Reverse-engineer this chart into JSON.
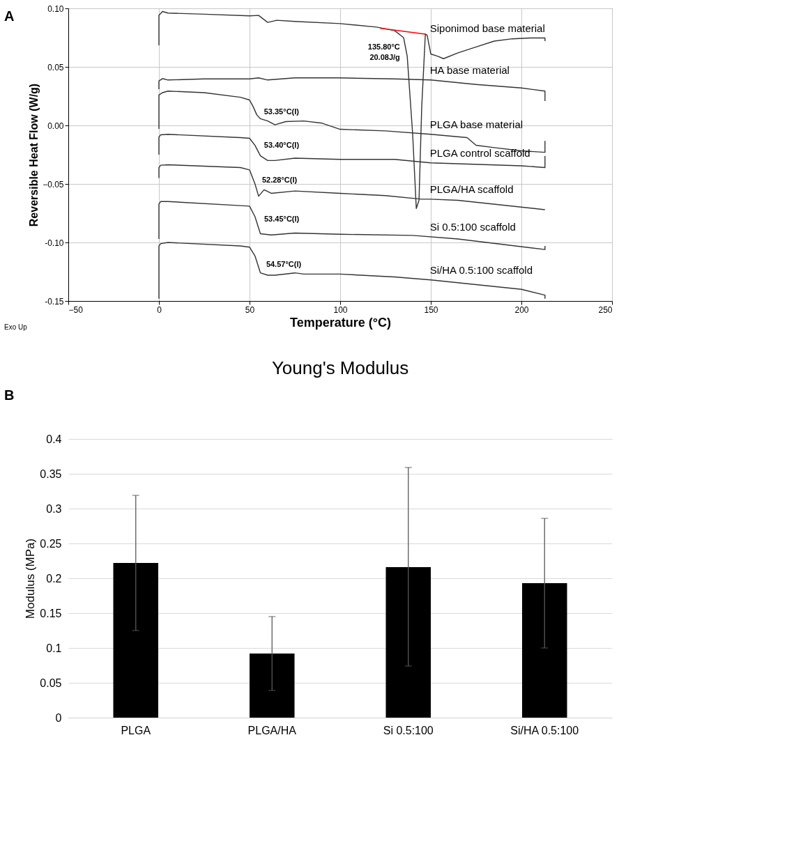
{
  "chart_data": [
    {
      "type": "line",
      "xlabel": "Temperature (°C)",
      "ylabel": "Reversible Heat Flow (W/g)",
      "xlim": [
        -50,
        250
      ],
      "ylim": [
        -0.15,
        0.1
      ],
      "xticks": [
        -50,
        0,
        50,
        100,
        150,
        200,
        250
      ],
      "yticks": [
        {
          "value": -0.15,
          "label": "-0.15"
        },
        {
          "value": -0.1,
          "label": "-0.10"
        },
        -0.05,
        {
          "value": 0,
          "label": "0.00"
        },
        0.05,
        {
          "value": 0.1,
          "label": "0.10"
        }
      ],
      "grid": true,
      "series": [
        {
          "name": "Siponimod base material",
          "color": "#333333",
          "x": [
            0,
            0,
            2,
            5,
            25,
            50,
            55,
            60,
            65,
            75,
            100,
            120,
            130,
            135,
            137,
            140,
            142,
            143.5,
            145,
            147,
            148,
            150,
            154,
            157,
            165,
            175,
            185,
            195,
            205,
            213,
            213
          ],
          "values": [
            0.0685,
            0.094,
            0.0973,
            0.096,
            0.095,
            0.0936,
            0.094,
            0.088,
            0.0898,
            0.0888,
            0.087,
            0.084,
            0.081,
            0.075,
            0.059,
            -0.0076,
            -0.071,
            -0.064,
            0.016,
            0.078,
            0.077,
            0.061,
            0.059,
            0.057,
            0.062,
            0.067,
            0.072,
            0.074,
            0.0747,
            0.0747,
            0.072
          ]
        },
        {
          "type": "line",
          "color": "#ff0000",
          "x": [
            122,
            147
          ],
          "values": [
            0.083,
            0.078
          ]
        },
        {
          "name": "HA base material",
          "color": "#333333",
          "x": [
            0,
            0,
            2,
            5,
            25,
            50,
            55,
            60,
            75,
            100,
            130,
            150,
            175,
            200,
            213,
            213
          ],
          "values": [
            0.031,
            0.038,
            0.04,
            0.0388,
            0.0397,
            0.0397,
            0.0406,
            0.0388,
            0.0406,
            0.0406,
            0.0397,
            0.0388,
            0.035,
            0.032,
            0.0293,
            0.0208
          ]
        },
        {
          "name": "PLGA base material",
          "color": "#333333",
          "x": [
            0,
            0,
            2,
            5,
            25,
            45,
            50,
            52,
            54,
            56,
            60,
            64,
            70,
            80,
            90,
            100,
            125,
            150,
            170,
            175,
            185,
            200,
            213,
            213
          ],
          "values": [
            -0.003,
            0.026,
            0.028,
            0.0293,
            0.028,
            0.024,
            0.0217,
            0.016,
            0.009,
            0.0057,
            0.0038,
            0.0005,
            0.0033,
            0.0038,
            0.0019,
            -0.0033,
            -0.0047,
            -0.0076,
            -0.0104,
            -0.017,
            -0.019,
            -0.0217,
            -0.023,
            -0.0132
          ]
        },
        {
          "name": "PLGA control scaffold",
          "color": "#333333",
          "x": [
            0,
            0,
            1,
            5,
            45,
            50,
            53,
            56,
            60,
            64,
            75,
            100,
            130,
            150,
            200,
            213,
            213
          ],
          "values": [
            -0.025,
            -0.01,
            -0.008,
            -0.0076,
            -0.0104,
            -0.011,
            -0.017,
            -0.026,
            -0.03,
            -0.03,
            -0.028,
            -0.029,
            -0.029,
            -0.032,
            -0.0345,
            -0.036,
            -0.026
          ]
        },
        {
          "name": "PLGA/HA scaffold",
          "color": "#333333",
          "x": [
            0,
            0,
            1,
            5,
            45,
            50,
            53,
            55,
            58,
            62,
            75,
            100,
            125,
            145,
            150,
            165,
            213
          ],
          "values": [
            -0.045,
            -0.036,
            -0.034,
            -0.0336,
            -0.036,
            -0.038,
            -0.05,
            -0.0605,
            -0.055,
            -0.058,
            -0.056,
            -0.058,
            -0.06,
            -0.063,
            -0.063,
            -0.064,
            -0.072
          ]
        },
        {
          "name": "Si 0.5:100 scaffold",
          "color": "#333333",
          "x": [
            0,
            0,
            1,
            5,
            45,
            50,
            53,
            56,
            62,
            75,
            100,
            140,
            165,
            213,
            213
          ],
          "values": [
            -0.097,
            -0.067,
            -0.065,
            -0.065,
            -0.0685,
            -0.069,
            -0.078,
            -0.0926,
            -0.0936,
            -0.092,
            -0.093,
            -0.094,
            -0.097,
            -0.106,
            -0.103
          ]
        },
        {
          "name": "Si/HA 0.5:100 scaffold",
          "color": "#333333",
          "x": [
            0,
            0,
            1,
            5,
            45,
            50,
            53,
            56,
            60,
            64,
            75,
            80,
            100,
            130,
            150,
            200,
            213,
            213
          ],
          "values": [
            -0.148,
            -0.103,
            -0.101,
            -0.1,
            -0.103,
            -0.104,
            -0.1115,
            -0.126,
            -0.128,
            -0.128,
            -0.126,
            -0.127,
            -0.127,
            -0.1295,
            -0.132,
            -0.14,
            -0.145,
            -0.148
          ]
        }
      ],
      "annotations": [
        "A",
        "Exo Up",
        "135.80°C\n20.08J/g",
        {
          "text": "53.35°C(I)",
          "x": 53.35,
          "y": 0.0113
        },
        {
          "text": "53.40°C(I)",
          "x": 53.4,
          "y": -0.0172
        },
        {
          "text": "52.28°C(I)",
          "x": 52.28,
          "y": -0.0471
        },
        {
          "text": "53.45°C(I)",
          "x": 53.45,
          "y": -0.0802
        },
        {
          "text": "54.57°C(I)",
          "x": 54.57,
          "y": -0.1191
        }
      ]
    },
    {
      "type": "bar",
      "title": "Young's Modulus",
      "ylabel": "Modulus (MPa)",
      "categories": [
        "PLGA",
        "PLGA/HA",
        "Si 0.5:100",
        "Si/HA 0.5:100"
      ],
      "values": [
        0.222,
        0.092,
        0.216,
        0.193
      ],
      "errors": [
        [
          0.125,
          0.319
        ],
        [
          0.039,
          0.145
        ],
        [
          0.074,
          0.359
        ],
        [
          0.1,
          0.286
        ]
      ],
      "color": "#000000",
      "ylim": [
        0,
        0.4
      ],
      "yticks": [
        0,
        0.05,
        0.1,
        0.15,
        0.2,
        0.25,
        0.3,
        0.35,
        0.4
      ],
      "grid": "y",
      "annotations": [
        "B"
      ]
    }
  ]
}
